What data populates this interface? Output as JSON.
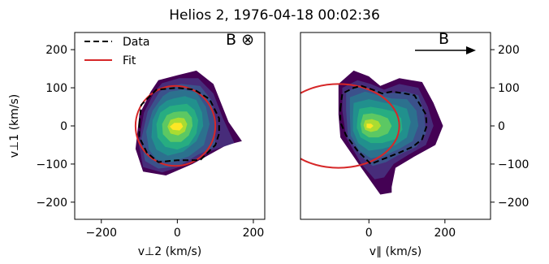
{
  "title": "Helios 2, 1976-04-18 00:02:36",
  "legend": {
    "data_label": "Data",
    "fit_label": "Fit"
  },
  "colors": {
    "data_line": "#000000",
    "fit_line": "#d62728",
    "contour_levels": [
      "#440154",
      "#472c7a",
      "#3b518b",
      "#2c718e",
      "#21908d",
      "#27ad81",
      "#5cc863",
      "#aadc32",
      "#fde725"
    ]
  },
  "chart_data": [
    {
      "type": "contour",
      "panel": "left",
      "xlabel": "v⊥2 (km/s)",
      "ylabel": "v⊥1 (km/s)",
      "xlim": [
        -270,
        230
      ],
      "ylim": [
        -245,
        245
      ],
      "xticks": [
        -200,
        0,
        200
      ],
      "yticks": [
        200,
        100,
        0,
        -100,
        -200
      ],
      "xtick_labels": [
        "−200",
        "0",
        "200"
      ],
      "ytick_labels": [
        "200",
        "100",
        "0",
        "−100",
        "−200"
      ],
      "annotation": "B ⊗",
      "grid": false,
      "legend_position": "top-left",
      "contours": [
        [
          [
            -50,
            120
          ],
          [
            0,
            133
          ],
          [
            50,
            145
          ],
          [
            95,
            110
          ],
          [
            135,
            10
          ],
          [
            170,
            -40
          ],
          [
            130,
            -50
          ],
          [
            40,
            -100
          ],
          [
            -30,
            -130
          ],
          [
            -90,
            -120
          ],
          [
            -110,
            -60
          ],
          [
            -100,
            30
          ],
          [
            -70,
            90
          ]
        ],
        [
          [
            -40,
            112
          ],
          [
            5,
            125
          ],
          [
            55,
            125
          ],
          [
            95,
            85
          ],
          [
            120,
            20
          ],
          [
            150,
            -45
          ],
          [
            90,
            -65
          ],
          [
            25,
            -102
          ],
          [
            -40,
            -122
          ],
          [
            -90,
            -108
          ],
          [
            -102,
            -45
          ],
          [
            -88,
            35
          ],
          [
            -60,
            90
          ]
        ],
        [
          [
            -30,
            102
          ],
          [
            10,
            110
          ],
          [
            60,
            105
          ],
          [
            92,
            65
          ],
          [
            98,
            10
          ],
          [
            100,
            -55
          ],
          [
            55,
            -75
          ],
          [
            5,
            -105
          ],
          [
            -50,
            -112
          ],
          [
            -85,
            -92
          ],
          [
            -95,
            -35
          ],
          [
            -78,
            38
          ],
          [
            -48,
            88
          ]
        ],
        [
          [
            -20,
            90
          ],
          [
            15,
            95
          ],
          [
            50,
            88
          ],
          [
            75,
            50
          ],
          [
            85,
            5
          ],
          [
            70,
            -50
          ],
          [
            30,
            -80
          ],
          [
            -15,
            -95
          ],
          [
            -55,
            -88
          ],
          [
            -75,
            -62
          ],
          [
            -82,
            -15
          ],
          [
            -65,
            40
          ],
          [
            -38,
            78
          ]
        ],
        [
          [
            -10,
            72
          ],
          [
            20,
            78
          ],
          [
            50,
            68
          ],
          [
            65,
            35
          ],
          [
            68,
            0
          ],
          [
            50,
            -40
          ],
          [
            15,
            -68
          ],
          [
            -25,
            -78
          ],
          [
            -55,
            -62
          ],
          [
            -68,
            -30
          ],
          [
            -65,
            15
          ],
          [
            -48,
            50
          ],
          [
            -28,
            66
          ]
        ],
        [
          [
            0,
            55
          ],
          [
            25,
            58
          ],
          [
            45,
            42
          ],
          [
            55,
            15
          ],
          [
            50,
            -20
          ],
          [
            30,
            -50
          ],
          [
            0,
            -62
          ],
          [
            -32,
            -55
          ],
          [
            -52,
            -30
          ],
          [
            -55,
            5
          ],
          [
            -45,
            35
          ],
          [
            -20,
            52
          ]
        ],
        [
          [
            5,
            38
          ],
          [
            25,
            38
          ],
          [
            38,
            22
          ],
          [
            40,
            0
          ],
          [
            30,
            -25
          ],
          [
            10,
            -42
          ],
          [
            -18,
            -42
          ],
          [
            -38,
            -22
          ],
          [
            -40,
            5
          ],
          [
            -28,
            28
          ],
          [
            -10,
            36
          ]
        ],
        [
          [
            2,
            22
          ],
          [
            18,
            20
          ],
          [
            26,
            5
          ],
          [
            20,
            -15
          ],
          [
            2,
            -25
          ],
          [
            -18,
            -20
          ],
          [
            -26,
            -2
          ],
          [
            -18,
            16
          ]
        ],
        [
          [
            -8,
            8
          ],
          [
            10,
            8
          ],
          [
            15,
            -2
          ],
          [
            6,
            -12
          ],
          [
            -12,
            -10
          ],
          [
            -20,
            -2
          ]
        ]
      ],
      "data_contour": [
        [
          -100,
          5
        ],
        [
          -95,
          55
        ],
        [
          -55,
          95
        ],
        [
          0,
          100
        ],
        [
          45,
          95
        ],
        [
          85,
          70
        ],
        [
          110,
          20
        ],
        [
          110,
          -20
        ],
        [
          100,
          -50
        ],
        [
          60,
          -90
        ],
        [
          0,
          -90
        ],
        [
          -50,
          -95
        ],
        [
          -80,
          -70
        ],
        [
          -100,
          -30
        ]
      ],
      "fit_ellipse": {
        "center": [
          -5,
          0
        ],
        "radius_x": 105,
        "radius_y": 105
      }
    },
    {
      "type": "contour",
      "panel": "right",
      "xlabel": "v∥ (km/s)",
      "ylabel": "",
      "xlim": [
        -180,
        320
      ],
      "ylim": [
        -245,
        245
      ],
      "xticks": [
        0,
        200
      ],
      "yticks": [
        200,
        100,
        0,
        -100,
        -200
      ],
      "xtick_labels": [
        "0",
        "200"
      ],
      "ytick_labels": [
        "200",
        "100",
        "0",
        "−100",
        "−200"
      ],
      "annotation": "B",
      "grid": false,
      "contours": [
        [
          [
            -80,
            110
          ],
          [
            -40,
            145
          ],
          [
            0,
            130
          ],
          [
            30,
            105
          ],
          [
            80,
            125
          ],
          [
            140,
            115
          ],
          [
            170,
            60
          ],
          [
            195,
            0
          ],
          [
            175,
            -50
          ],
          [
            120,
            -80
          ],
          [
            70,
            -110
          ],
          [
            60,
            -160
          ],
          [
            60,
            -175
          ],
          [
            30,
            -180
          ],
          [
            -20,
            -110
          ],
          [
            -75,
            -30
          ],
          [
            -80,
            30
          ]
        ],
        [
          [
            -70,
            100
          ],
          [
            -30,
            120
          ],
          [
            5,
            110
          ],
          [
            40,
            95
          ],
          [
            80,
            110
          ],
          [
            130,
            100
          ],
          [
            155,
            50
          ],
          [
            170,
            0
          ],
          [
            150,
            -50
          ],
          [
            105,
            -75
          ],
          [
            65,
            -100
          ],
          [
            40,
            -135
          ],
          [
            15,
            -140
          ],
          [
            -20,
            -100
          ],
          [
            -60,
            -30
          ],
          [
            -70,
            40
          ]
        ],
        [
          [
            -60,
            90
          ],
          [
            -20,
            105
          ],
          [
            15,
            95
          ],
          [
            50,
            85
          ],
          [
            95,
            90
          ],
          [
            130,
            80
          ],
          [
            145,
            35
          ],
          [
            150,
            -20
          ],
          [
            125,
            -55
          ],
          [
            80,
            -75
          ],
          [
            45,
            -95
          ],
          [
            10,
            -105
          ],
          [
            -20,
            -80
          ],
          [
            -55,
            -30
          ],
          [
            -60,
            40
          ]
        ],
        [
          [
            -50,
            75
          ],
          [
            -10,
            90
          ],
          [
            25,
            80
          ],
          [
            60,
            72
          ],
          [
            100,
            70
          ],
          [
            125,
            40
          ],
          [
            130,
            0
          ],
          [
            115,
            -40
          ],
          [
            80,
            -60
          ],
          [
            40,
            -78
          ],
          [
            5,
            -85
          ],
          [
            -25,
            -65
          ],
          [
            -48,
            -25
          ],
          [
            -50,
            30
          ]
        ],
        [
          [
            -40,
            60
          ],
          [
            0,
            70
          ],
          [
            35,
            62
          ],
          [
            70,
            55
          ],
          [
            100,
            45
          ],
          [
            110,
            10
          ],
          [
            100,
            -30
          ],
          [
            70,
            -50
          ],
          [
            35,
            -60
          ],
          [
            0,
            -65
          ],
          [
            -28,
            -45
          ],
          [
            -42,
            -12
          ],
          [
            -42,
            25
          ]
        ],
        [
          [
            -25,
            45
          ],
          [
            5,
            50
          ],
          [
            35,
            45
          ],
          [
            65,
            38
          ],
          [
            85,
            20
          ],
          [
            88,
            -10
          ],
          [
            70,
            -35
          ],
          [
            35,
            -45
          ],
          [
            5,
            -45
          ],
          [
            -22,
            -30
          ],
          [
            -32,
            -5
          ],
          [
            -30,
            20
          ]
        ],
        [
          [
            -15,
            30
          ],
          [
            8,
            33
          ],
          [
            30,
            28
          ],
          [
            50,
            20
          ],
          [
            60,
            0
          ],
          [
            50,
            -20
          ],
          [
            25,
            -30
          ],
          [
            0,
            -30
          ],
          [
            -18,
            -18
          ],
          [
            -22,
            5
          ]
        ],
        [
          [
            -10,
            15
          ],
          [
            8,
            18
          ],
          [
            25,
            12
          ],
          [
            32,
            0
          ],
          [
            22,
            -12
          ],
          [
            5,
            -16
          ],
          [
            -10,
            -10
          ],
          [
            -14,
            2
          ]
        ],
        [
          [
            -6,
            6
          ],
          [
            6,
            6
          ],
          [
            12,
            0
          ],
          [
            4,
            -7
          ],
          [
            -6,
            -5
          ]
        ]
      ],
      "data_contour": [
        [
          -75,
          45
        ],
        [
          -70,
          85
        ],
        [
          -40,
          100
        ],
        [
          -20,
          105
        ],
        [
          10,
          95
        ],
        [
          35,
          85
        ],
        [
          60,
          90
        ],
        [
          95,
          85
        ],
        [
          120,
          80
        ],
        [
          135,
          55
        ],
        [
          150,
          30
        ],
        [
          152,
          0
        ],
        [
          140,
          -35
        ],
        [
          115,
          -55
        ],
        [
          80,
          -70
        ],
        [
          30,
          -90
        ],
        [
          5,
          -100
        ],
        [
          -30,
          -65
        ],
        [
          -60,
          -25
        ],
        [
          -75,
          10
        ]
      ],
      "fit_ellipse": {
        "center": [
          -80,
          0
        ],
        "radius_x": 160,
        "radius_y": 110
      }
    }
  ]
}
